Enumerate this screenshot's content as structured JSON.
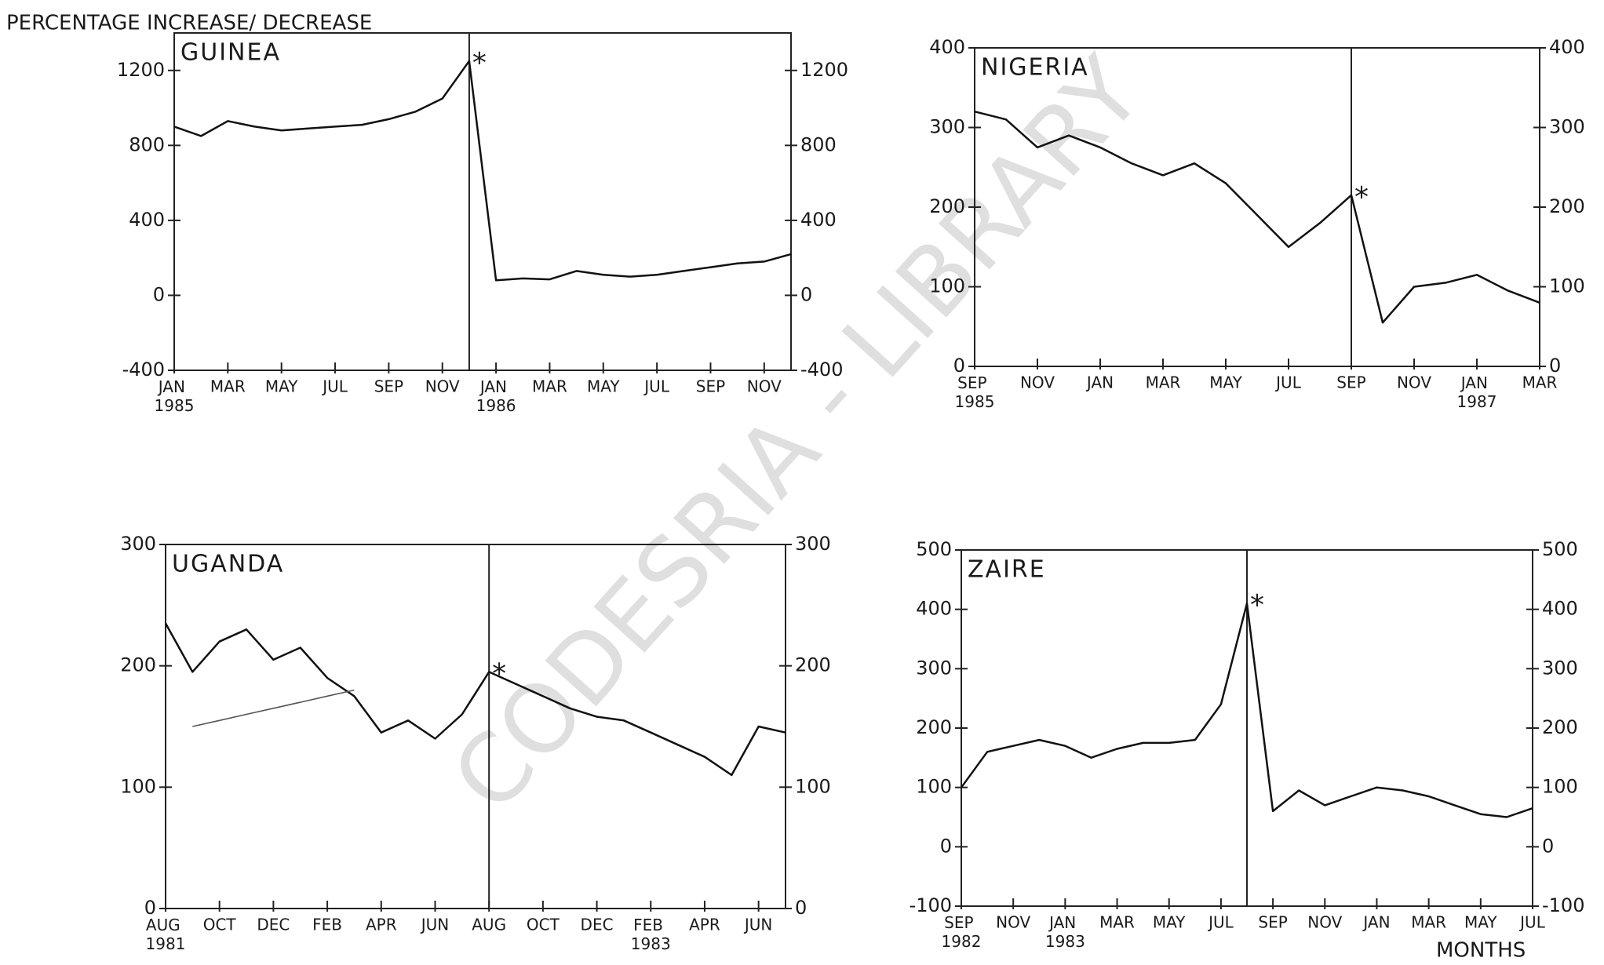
{
  "y_axis_label": "PERCENTAGE INCREASE/ DECREASE",
  "x_axis_label": "MONTHS",
  "watermark": "CODESRIA - LIBRARY",
  "chart_data": [
    {
      "type": "line",
      "title": "GUINEA",
      "categories": [
        "JAN 1985",
        null,
        "MAR",
        null,
        "MAY",
        null,
        "JUL",
        null,
        "SEP",
        null,
        "NOV",
        null,
        "JAN 1986",
        null,
        "MAR",
        null,
        "MAY",
        null,
        "JUL",
        null,
        "SEP",
        null,
        "NOV",
        null
      ],
      "series": [
        {
          "color": "#111111",
          "values": [
            900,
            850,
            930,
            900,
            880,
            890,
            900,
            910,
            940,
            980,
            1050,
            1250,
            80,
            90,
            85,
            130,
            110,
            100,
            110,
            130,
            150,
            170,
            180,
            220
          ]
        }
      ],
      "ylim": [
        -400,
        1400
      ],
      "yticks": [
        -400,
        0,
        400,
        800,
        1200
      ],
      "y2lim": [
        -400,
        1400
      ],
      "y2ticks": [
        -400,
        0,
        400,
        800,
        1200
      ],
      "annotations": [
        {
          "text": "*",
          "index": 11
        }
      ]
    },
    {
      "type": "line",
      "title": "NIGERIA",
      "categories": [
        "SEP 1985",
        null,
        "NOV",
        null,
        "JAN",
        null,
        "MAR",
        null,
        "MAY",
        null,
        "JUL",
        null,
        "SEP",
        null,
        "NOV",
        null,
        "JAN 1987",
        null,
        "MAR"
      ],
      "series": [
        {
          "color": "#111111",
          "values": [
            320,
            310,
            275,
            290,
            275,
            255,
            240,
            255,
            230,
            190,
            150,
            180,
            215,
            55,
            100,
            105,
            115,
            95,
            80
          ]
        }
      ],
      "ylim": [
        0,
        400
      ],
      "yticks": [
        0,
        100,
        200,
        300,
        400
      ],
      "y2lim": [
        0,
        400
      ],
      "y2ticks": [
        0,
        100,
        200,
        300,
        400
      ],
      "annotations": [
        {
          "text": "*",
          "index": 12
        }
      ]
    },
    {
      "type": "line",
      "title": "UGANDA",
      "categories": [
        "AUG 1981",
        null,
        "OCT",
        null,
        "DEC",
        null,
        "FEB",
        null,
        "APR",
        null,
        "JUN",
        null,
        "AUG",
        null,
        "OCT",
        null,
        "DEC",
        null,
        "FEB 1983",
        null,
        "APR",
        null,
        "JUN",
        null
      ],
      "series": [
        {
          "color": "#111111",
          "values": [
            235,
            195,
            220,
            230,
            205,
            215,
            190,
            175,
            145,
            155,
            140,
            160,
            195,
            185,
            175,
            165,
            158,
            155,
            145,
            135,
            125,
            110,
            150,
            145
          ]
        },
        {
          "color": "#555555",
          "values": [
            null,
            150,
            155,
            160,
            165,
            170,
            175,
            180,
            null,
            null,
            null,
            null,
            null,
            null,
            null,
            null,
            null,
            null,
            null,
            null,
            null,
            null,
            null,
            null
          ]
        }
      ],
      "ylim": [
        0,
        300
      ],
      "yticks": [
        0,
        100,
        200,
        300
      ],
      "y2lim": [
        0,
        300
      ],
      "y2ticks": [
        0,
        100,
        200,
        300
      ],
      "annotations": [
        {
          "text": "*",
          "index": 12
        }
      ]
    },
    {
      "type": "line",
      "title": "ZAIRE",
      "categories": [
        "SEP 1982",
        null,
        "NOV",
        null,
        "JAN 1983",
        null,
        "MAR",
        null,
        "MAY",
        null,
        "JUL",
        null,
        "SEP",
        null,
        "NOV",
        null,
        "JAN",
        null,
        "MAR",
        null,
        "MAY",
        null,
        "JUL"
      ],
      "series": [
        {
          "color": "#111111",
          "values": [
            100,
            160,
            170,
            180,
            170,
            150,
            165,
            175,
            175,
            180,
            240,
            410,
            60,
            95,
            70,
            85,
            100,
            95,
            85,
            70,
            55,
            50,
            65
          ]
        }
      ],
      "ylim": [
        -100,
        500
      ],
      "yticks": [
        -100,
        0,
        100,
        200,
        300,
        400,
        500
      ],
      "y2lim": [
        -100,
        500
      ],
      "y2ticks": [
        -100,
        0,
        100,
        200,
        300,
        400,
        500
      ],
      "annotations": [
        {
          "text": "*",
          "index": 11
        }
      ]
    }
  ]
}
